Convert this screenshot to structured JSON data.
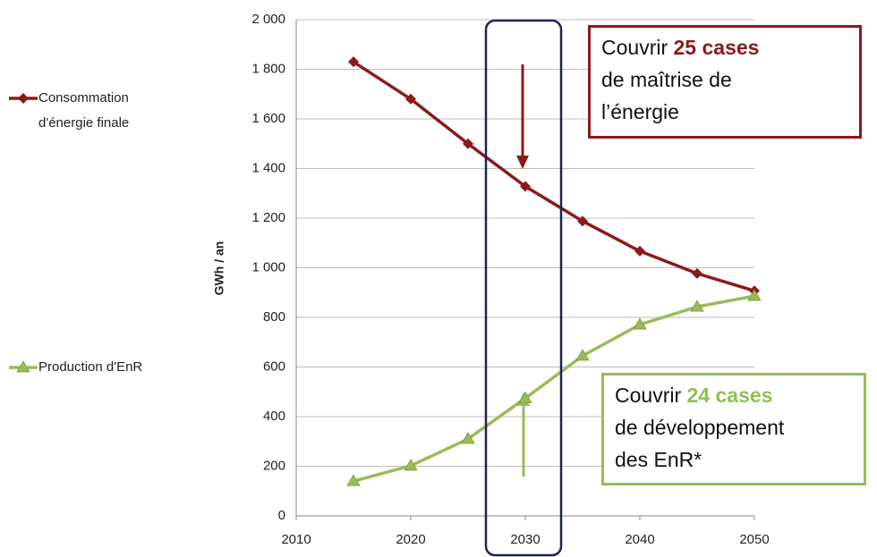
{
  "chart_data": {
    "type": "line",
    "x_label": "GWh / an",
    "y_label": "GWh / an",
    "xlim": [
      2010,
      2050
    ],
    "xticks": [
      2010,
      2020,
      2030,
      2040,
      2050
    ],
    "ylim": [
      0,
      2000
    ],
    "yticks": [
      0,
      200,
      400,
      600,
      800,
      {
        "value": 1000,
        "label": "1 000"
      },
      {
        "value": 1200,
        "label": "1 200"
      },
      {
        "value": 1400,
        "label": "1 400"
      },
      {
        "value": 1600,
        "label": "1 600"
      },
      {
        "value": 1800,
        "label": "1 800"
      },
      {
        "value": 2000,
        "label": "2 000"
      }
    ],
    "grid": true,
    "x": [
      2015,
      2020,
      2025,
      2030,
      2035,
      2040,
      2045,
      2050
    ],
    "series": [
      {
        "name": "Consommation d'énergie finale",
        "color": "#8b1a1a",
        "marker": "diamond",
        "values": [
          1830,
          1680,
          1500,
          1328,
          1188,
          1067,
          977,
          907
        ]
      },
      {
        "name": "Production d'EnR",
        "color": "#9bbb59",
        "marker": "triangle",
        "values": [
          140,
          202,
          310,
          474,
          645,
          771,
          843,
          886
        ]
      }
    ],
    "annotations": [
      {
        "prefix": "Couvrir",
        "highlight": "25 cases",
        "lines": [
          "de maîtrise de",
          "l’énergie"
        ],
        "color": "#8b1a1a"
      },
      {
        "prefix": "Couvrir",
        "highlight": "24 cases",
        "lines": [
          "de développement",
          "des EnR*"
        ],
        "color": "#92c050"
      }
    ]
  }
}
